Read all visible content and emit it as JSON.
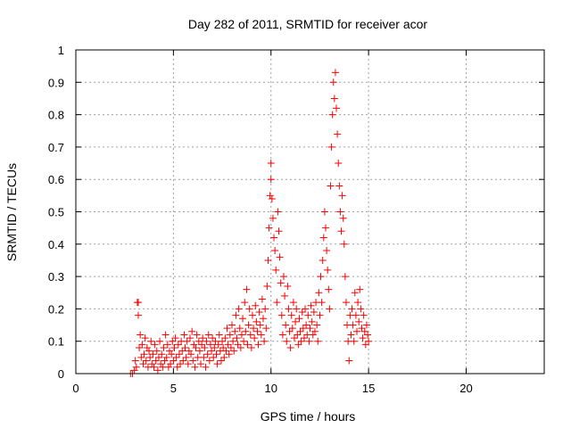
{
  "chart_data": {
    "type": "scatter",
    "title": "Day 282 of 2011, SRMTID for receiver acor",
    "xlabel": "GPS time / hours",
    "ylabel": "SRMTID / TECUs",
    "xlim": [
      0,
      24
    ],
    "ylim": [
      0,
      1
    ],
    "xticks": [
      0,
      5,
      10,
      15,
      20
    ],
    "xtick_labels": [
      "0",
      "5",
      "10",
      "15",
      "20"
    ],
    "yticks": [
      0,
      0.1,
      0.2,
      0.3,
      0.4,
      0.5,
      0.6,
      0.7,
      0.8,
      0.9,
      1
    ],
    "ytick_labels": [
      "0",
      "0.1",
      "0.2",
      "0.3",
      "0.4",
      "0.5",
      "0.6",
      "0.7",
      "0.8",
      "0.9",
      "1"
    ],
    "grid": true,
    "marker": "+",
    "series": [
      {
        "name": "SRMTID",
        "color": "#ff0000",
        "points": [
          [
            2.8,
            0.0
          ],
          [
            2.9,
            0.0
          ],
          [
            3.0,
            0.01
          ],
          [
            3.05,
            0.04
          ],
          [
            3.1,
            0.02
          ],
          [
            3.15,
            0.22
          ],
          [
            3.2,
            0.22
          ],
          [
            3.2,
            0.18
          ],
          [
            3.25,
            0.08
          ],
          [
            3.3,
            0.12
          ],
          [
            3.35,
            0.05
          ],
          [
            3.4,
            0.09
          ],
          [
            3.45,
            0.03
          ],
          [
            3.5,
            0.06
          ],
          [
            3.55,
            0.11
          ],
          [
            3.6,
            0.04
          ],
          [
            3.65,
            0.08
          ],
          [
            3.7,
            0.02
          ],
          [
            3.75,
            0.07
          ],
          [
            3.8,
            0.05
          ],
          [
            3.85,
            0.1
          ],
          [
            3.9,
            0.03
          ],
          [
            3.95,
            0.06
          ],
          [
            4.0,
            0.02
          ],
          [
            4.05,
            0.09
          ],
          [
            4.1,
            0.04
          ],
          [
            4.15,
            0.07
          ],
          [
            4.2,
            0.01
          ],
          [
            4.25,
            0.05
          ],
          [
            4.3,
            0.1
          ],
          [
            4.35,
            0.03
          ],
          [
            4.4,
            0.06
          ],
          [
            4.45,
            0.02
          ],
          [
            4.5,
            0.08
          ],
          [
            4.55,
            0.04
          ],
          [
            4.6,
            0.12
          ],
          [
            4.65,
            0.05
          ],
          [
            4.7,
            0.09
          ],
          [
            4.75,
            0.02
          ],
          [
            4.8,
            0.07
          ],
          [
            4.85,
            0.03
          ],
          [
            4.9,
            0.06
          ],
          [
            4.95,
            0.1
          ],
          [
            5.0,
            0.04
          ],
          [
            5.05,
            0.08
          ],
          [
            5.1,
            0.11
          ],
          [
            5.15,
            0.05
          ],
          [
            5.2,
            0.02
          ],
          [
            5.25,
            0.09
          ],
          [
            5.3,
            0.06
          ],
          [
            5.35,
            0.03
          ],
          [
            5.4,
            0.1
          ],
          [
            5.45,
            0.07
          ],
          [
            5.5,
            0.04
          ],
          [
            5.55,
            0.12
          ],
          [
            5.6,
            0.08
          ],
          [
            5.65,
            0.05
          ],
          [
            5.7,
            0.1
          ],
          [
            5.75,
            0.03
          ],
          [
            5.8,
            0.07
          ],
          [
            5.85,
            0.11
          ],
          [
            5.9,
            0.06
          ],
          [
            5.95,
            0.13
          ],
          [
            6.0,
            0.04
          ],
          [
            6.05,
            0.09
          ],
          [
            6.1,
            0.02
          ],
          [
            6.15,
            0.08
          ],
          [
            6.2,
            0.12
          ],
          [
            6.25,
            0.05
          ],
          [
            6.3,
            0.1
          ],
          [
            6.35,
            0.07
          ],
          [
            6.4,
            0.03
          ],
          [
            6.45,
            0.09
          ],
          [
            6.5,
            0.11
          ],
          [
            6.55,
            0.05
          ],
          [
            6.6,
            0.08
          ],
          [
            6.65,
            0.02
          ],
          [
            6.7,
            0.1
          ],
          [
            6.75,
            0.06
          ],
          [
            6.8,
            0.12
          ],
          [
            6.85,
            0.04
          ],
          [
            6.9,
            0.09
          ],
          [
            6.95,
            0.07
          ],
          [
            7.0,
            0.11
          ],
          [
            7.05,
            0.05
          ],
          [
            7.1,
            0.08
          ],
          [
            7.15,
            0.1
          ],
          [
            7.2,
            0.06
          ],
          [
            7.25,
            0.03
          ],
          [
            7.3,
            0.09
          ],
          [
            7.35,
            0.12
          ],
          [
            7.4,
            0.07
          ],
          [
            7.45,
            0.04
          ],
          [
            7.5,
            0.1
          ],
          [
            7.55,
            0.08
          ],
          [
            7.6,
            0.05
          ],
          [
            7.65,
            0.11
          ],
          [
            7.7,
            0.07
          ],
          [
            7.75,
            0.14
          ],
          [
            7.8,
            0.09
          ],
          [
            7.85,
            0.06
          ],
          [
            7.9,
            0.12
          ],
          [
            7.95,
            0.08
          ],
          [
            8.0,
            0.15
          ],
          [
            8.05,
            0.1
          ],
          [
            8.1,
            0.07
          ],
          [
            8.15,
            0.13
          ],
          [
            8.2,
            0.18
          ],
          [
            8.25,
            0.11
          ],
          [
            8.3,
            0.09
          ],
          [
            8.35,
            0.2
          ],
          [
            8.4,
            0.14
          ],
          [
            8.45,
            0.08
          ],
          [
            8.5,
            0.12
          ],
          [
            8.55,
            0.17
          ],
          [
            8.6,
            0.1
          ],
          [
            8.65,
            0.22
          ],
          [
            8.7,
            0.13
          ],
          [
            8.75,
            0.26
          ],
          [
            8.8,
            0.09
          ],
          [
            8.85,
            0.15
          ],
          [
            8.9,
            0.2
          ],
          [
            8.95,
            0.12
          ],
          [
            9.0,
            0.08
          ],
          [
            9.05,
            0.18
          ],
          [
            9.1,
            0.14
          ],
          [
            9.15,
            0.11
          ],
          [
            9.2,
            0.21
          ],
          [
            9.25,
            0.16
          ],
          [
            9.3,
            0.13
          ],
          [
            9.35,
            0.09
          ],
          [
            9.4,
            0.19
          ],
          [
            9.45,
            0.15
          ],
          [
            9.5,
            0.12
          ],
          [
            9.55,
            0.23
          ],
          [
            9.6,
            0.17
          ],
          [
            9.65,
            0.1
          ],
          [
            9.7,
            0.2
          ],
          [
            9.75,
            0.14
          ],
          [
            9.8,
            0.27
          ],
          [
            9.85,
            0.35
          ],
          [
            9.9,
            0.45
          ],
          [
            9.95,
            0.55
          ],
          [
            10.0,
            0.65
          ],
          [
            10.0,
            0.6
          ],
          [
            10.05,
            0.54
          ],
          [
            10.1,
            0.48
          ],
          [
            10.15,
            0.42
          ],
          [
            10.2,
            0.38
          ],
          [
            10.25,
            0.32
          ],
          [
            10.3,
            0.22
          ],
          [
            10.35,
            0.5
          ],
          [
            10.4,
            0.44
          ],
          [
            10.45,
            0.36
          ],
          [
            10.5,
            0.28
          ],
          [
            10.55,
            0.18
          ],
          [
            10.6,
            0.12
          ],
          [
            10.65,
            0.3
          ],
          [
            10.7,
            0.24
          ],
          [
            10.75,
            0.15
          ],
          [
            10.8,
            0.1
          ],
          [
            10.85,
            0.27
          ],
          [
            10.9,
            0.2
          ],
          [
            10.95,
            0.13
          ],
          [
            11.0,
            0.08
          ],
          [
            11.05,
            0.18
          ],
          [
            11.1,
            0.14
          ],
          [
            11.15,
            0.22
          ],
          [
            11.2,
            0.11
          ],
          [
            11.25,
            0.16
          ],
          [
            11.3,
            0.2
          ],
          [
            11.35,
            0.12
          ],
          [
            11.4,
            0.09
          ],
          [
            11.45,
            0.17
          ],
          [
            11.5,
            0.13
          ],
          [
            11.55,
            0.1
          ],
          [
            11.6,
            0.19
          ],
          [
            11.65,
            0.14
          ],
          [
            11.7,
            0.11
          ],
          [
            11.75,
            0.2
          ],
          [
            11.8,
            0.15
          ],
          [
            11.85,
            0.12
          ],
          [
            11.9,
            0.18
          ],
          [
            11.95,
            0.1
          ],
          [
            12.0,
            0.14
          ],
          [
            12.05,
            0.21
          ],
          [
            12.1,
            0.16
          ],
          [
            12.15,
            0.12
          ],
          [
            12.2,
            0.19
          ],
          [
            12.25,
            0.13
          ],
          [
            12.3,
            0.22
          ],
          [
            12.35,
            0.15
          ],
          [
            12.4,
            0.1
          ],
          [
            12.45,
            0.25
          ],
          [
            12.5,
            0.18
          ],
          [
            12.55,
            0.3
          ],
          [
            12.6,
            0.22
          ],
          [
            12.65,
            0.35
          ],
          [
            12.7,
            0.42
          ],
          [
            12.75,
            0.5
          ],
          [
            12.8,
            0.45
          ],
          [
            12.85,
            0.38
          ],
          [
            12.9,
            0.32
          ],
          [
            12.95,
            0.26
          ],
          [
            13.0,
            0.2
          ],
          [
            13.05,
            0.58
          ],
          [
            13.1,
            0.7
          ],
          [
            13.15,
            0.8
          ],
          [
            13.2,
            0.9
          ],
          [
            13.25,
            0.85
          ],
          [
            13.3,
            0.93
          ],
          [
            13.35,
            0.82
          ],
          [
            13.4,
            0.74
          ],
          [
            13.45,
            0.65
          ],
          [
            13.5,
            0.58
          ],
          [
            13.55,
            0.5
          ],
          [
            13.6,
            0.44
          ],
          [
            13.65,
            0.55
          ],
          [
            13.7,
            0.48
          ],
          [
            13.75,
            0.4
          ],
          [
            13.8,
            0.3
          ],
          [
            13.85,
            0.22
          ],
          [
            13.9,
            0.15
          ],
          [
            13.95,
            0.1
          ],
          [
            14.0,
            0.04
          ],
          [
            14.05,
            0.18
          ],
          [
            14.1,
            0.12
          ],
          [
            14.15,
            0.2
          ],
          [
            14.2,
            0.15
          ],
          [
            14.25,
            0.1
          ],
          [
            14.3,
            0.25
          ],
          [
            14.35,
            0.18
          ],
          [
            14.4,
            0.13
          ],
          [
            14.45,
            0.22
          ],
          [
            14.5,
            0.16
          ],
          [
            14.55,
            0.26
          ],
          [
            14.6,
            0.2
          ],
          [
            14.65,
            0.14
          ],
          [
            14.7,
            0.11
          ],
          [
            14.75,
            0.18
          ],
          [
            14.8,
            0.13
          ],
          [
            14.85,
            0.09
          ],
          [
            14.9,
            0.15
          ],
          [
            14.95,
            0.12
          ],
          [
            15.0,
            0.1
          ]
        ]
      }
    ]
  }
}
